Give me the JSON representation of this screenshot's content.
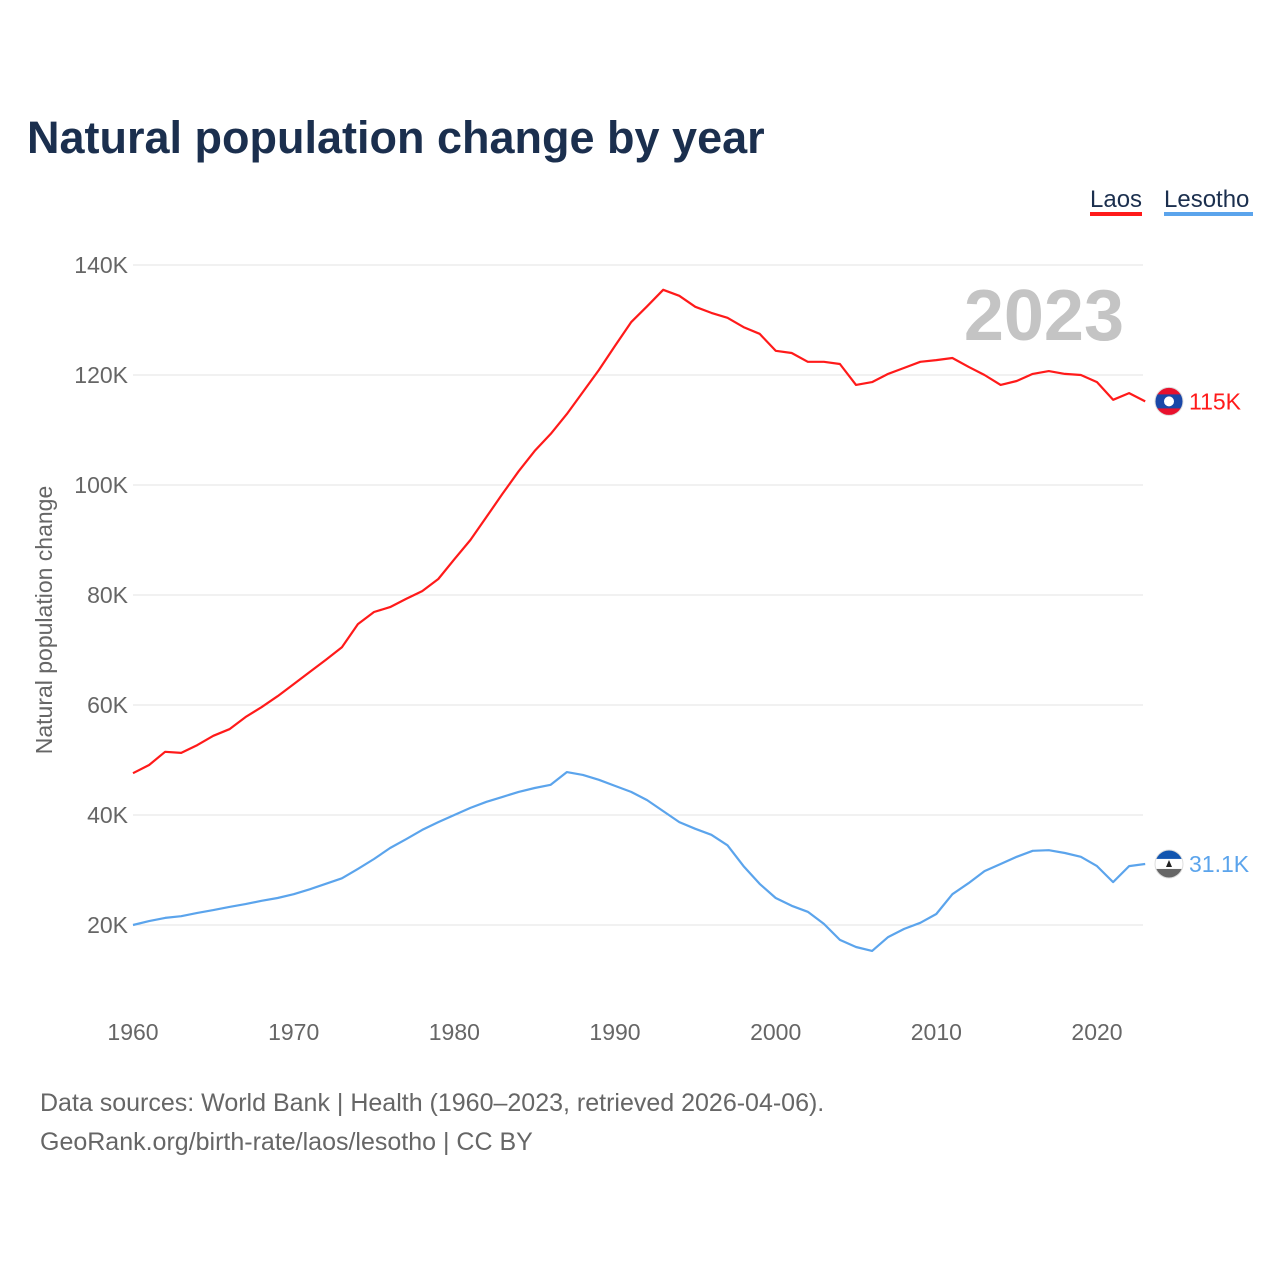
{
  "chart_data": {
    "type": "line",
    "title": "Natural population change by year",
    "xlabel": "",
    "ylabel": "Natural population change",
    "xlim": [
      1960,
      2023
    ],
    "ylim": [
      10000,
      140000
    ],
    "grid": true,
    "legend_placement": "top-right",
    "year_label": "2023",
    "x_ticks": [
      1960,
      1970,
      1980,
      1990,
      2000,
      2010,
      2020
    ],
    "x_tick_labels": [
      "1960",
      "1970",
      "1980",
      "1990",
      "2000",
      "2010",
      "2020"
    ],
    "y_ticks": [
      20000,
      40000,
      60000,
      80000,
      100000,
      120000,
      140000
    ],
    "y_tick_labels": [
      "20K",
      "40K",
      "60K",
      "80K",
      "100K",
      "120K",
      "140K"
    ],
    "x": [
      1960,
      1961,
      1962,
      1963,
      1964,
      1965,
      1966,
      1967,
      1968,
      1969,
      1970,
      1971,
      1972,
      1973,
      1974,
      1975,
      1976,
      1977,
      1978,
      1979,
      1980,
      1981,
      1982,
      1983,
      1984,
      1985,
      1986,
      1987,
      1988,
      1989,
      1990,
      1991,
      1992,
      1993,
      1994,
      1995,
      1996,
      1997,
      1998,
      1999,
      2000,
      2001,
      2002,
      2003,
      2004,
      2005,
      2006,
      2007,
      2008,
      2009,
      2010,
      2011,
      2012,
      2013,
      2014,
      2015,
      2016,
      2017,
      2018,
      2019,
      2020,
      2021,
      2022,
      2023
    ],
    "series": [
      {
        "name": "Laos",
        "color": "#ff1a1a",
        "end_label": "115K",
        "flag": "laos-flag",
        "values": [
          47600,
          49100,
          51500,
          51300,
          52700,
          54400,
          55600,
          57800,
          59600,
          61600,
          63800,
          66000,
          68200,
          70500,
          74700,
          76900,
          77800,
          79300,
          80700,
          82900,
          86500,
          90000,
          94200,
          98400,
          102500,
          106200,
          109300,
          112900,
          116900,
          120900,
          125300,
          129600,
          132500,
          135500,
          134400,
          132400,
          131300,
          130400,
          128700,
          127500,
          124400,
          124000,
          122400,
          122400,
          122000,
          118200,
          118700,
          120200,
          121300,
          122400,
          122700,
          123100,
          121500,
          120000,
          118200,
          118900,
          120200,
          120700,
          120200,
          120000,
          118700,
          115500,
          116700,
          115200
        ]
      },
      {
        "name": "Lesotho",
        "color": "#5ba4ec",
        "end_label": "31.1K",
        "flag": "lesotho-flag",
        "values": [
          20000,
          20700,
          21300,
          21600,
          22200,
          22700,
          23300,
          23800,
          24400,
          24900,
          25600,
          26500,
          27500,
          28500,
          30200,
          32000,
          34000,
          35600,
          37300,
          38700,
          40000,
          41300,
          42400,
          43300,
          44200,
          44900,
          45500,
          47800,
          47300,
          46400,
          45300,
          44200,
          42700,
          40700,
          38700,
          37500,
          36400,
          34500,
          30700,
          27500,
          24900,
          23500,
          22400,
          20200,
          17300,
          16000,
          15300,
          17800,
          19300,
          20400,
          22000,
          25600,
          27600,
          29800,
          31100,
          32400,
          33500,
          33600,
          33100,
          32400,
          30700,
          27800,
          30700,
          31100
        ]
      }
    ]
  },
  "footer": {
    "source": "Data sources: World Bank | Health (1960–2023, retrieved 2026-04-06).",
    "credit": "GeoRank.org/birth-rate/laos/lesotho | CC BY"
  }
}
